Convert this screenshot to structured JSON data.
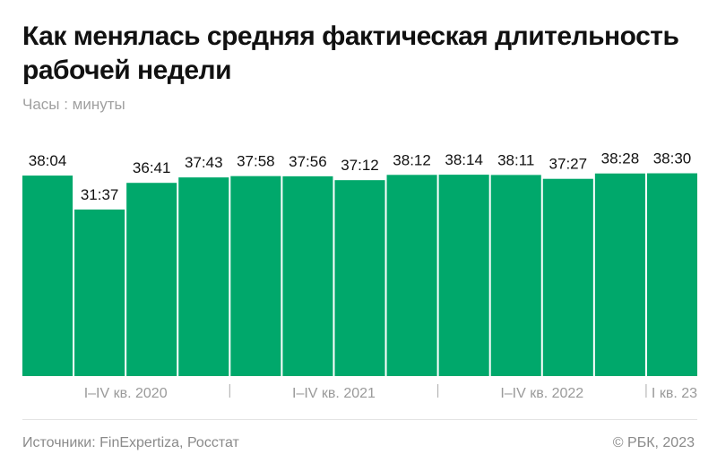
{
  "colors": {
    "bar": "#00a86b",
    "text": "#111111",
    "muted": "#a0a0a0"
  },
  "chart_data": {
    "type": "bar",
    "title": "Как менялась средняя фактическая длительность рабочей недели",
    "subtitle": "Часы : минуты",
    "values": [
      "38:04",
      "31:37",
      "36:41",
      "37:43",
      "37:58",
      "37:56",
      "37:12",
      "38:12",
      "38:14",
      "38:11",
      "37:27",
      "38:28",
      "38:30"
    ],
    "groups": [
      {
        "label": "I–IV кв. 2020",
        "count": 4
      },
      {
        "label": "I–IV кв. 2021",
        "count": 4
      },
      {
        "label": "I–IV кв. 2022",
        "count": 4
      },
      {
        "label": "I кв. 23",
        "count": 1
      }
    ],
    "ylim": [
      0,
      47.6
    ],
    "grid": false,
    "legend": "none"
  },
  "footer": {
    "source": "Источники: FinExpertiza, Росстат",
    "copyright": "© РБК, 2023"
  }
}
